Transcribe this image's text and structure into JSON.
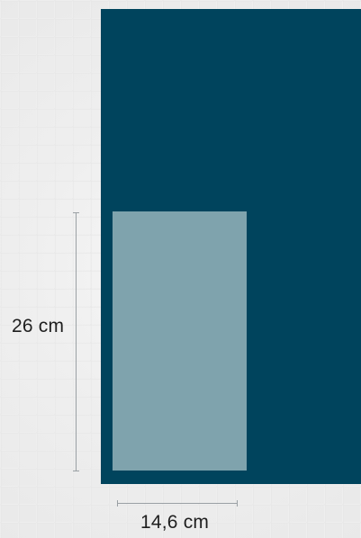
{
  "dimensions": {
    "height_label": "26 cm",
    "width_label": "14,6 cm"
  },
  "colors": {
    "background": "#ededed",
    "dark_panel": "#00445d",
    "light_panel": "#7fa3ad",
    "dimension_line": "#9aa0a4",
    "label_text": "#1f1f1f"
  }
}
